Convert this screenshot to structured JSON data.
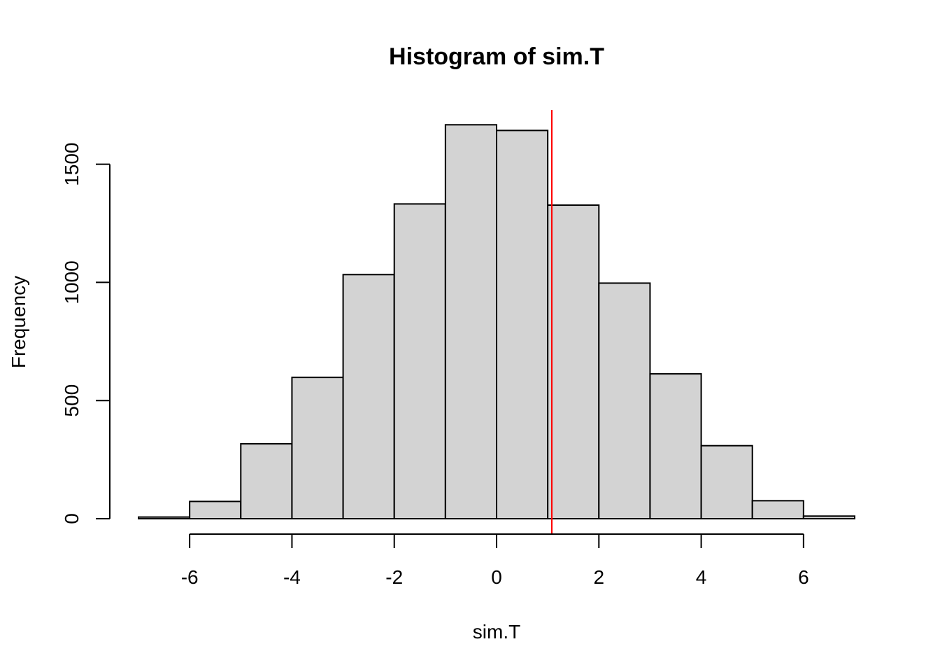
{
  "chart_data": {
    "type": "bar",
    "title": "Histogram of sim.T",
    "xlabel": "sim.T",
    "ylabel": "Frequency",
    "bins": [
      {
        "start": -7,
        "end": -6,
        "count": 7
      },
      {
        "start": -6,
        "end": -5,
        "count": 73
      },
      {
        "start": -5,
        "end": -4,
        "count": 317
      },
      {
        "start": -4,
        "end": -3,
        "count": 598
      },
      {
        "start": -3,
        "end": -2,
        "count": 1033
      },
      {
        "start": -2,
        "end": -1,
        "count": 1332
      },
      {
        "start": -1,
        "end": 0,
        "count": 1667
      },
      {
        "start": 0,
        "end": 1,
        "count": 1643
      },
      {
        "start": 1,
        "end": 2,
        "count": 1327
      },
      {
        "start": 2,
        "end": 3,
        "count": 997
      },
      {
        "start": 3,
        "end": 4,
        "count": 613
      },
      {
        "start": 4,
        "end": 5,
        "count": 309
      },
      {
        "start": 5,
        "end": 6,
        "count": 76
      },
      {
        "start": 6,
        "end": 7,
        "count": 11
      }
    ],
    "xlim": [
      -7,
      7
    ],
    "ylim": [
      0,
      1730
    ],
    "x_ticks": [
      -6,
      -4,
      -2,
      0,
      2,
      4,
      6
    ],
    "x_tick_labels": [
      "-6",
      "-4",
      "-2",
      "0",
      "2",
      "4",
      "6"
    ],
    "y_ticks": [
      0,
      500,
      1000,
      1500
    ],
    "y_tick_labels": [
      "0",
      "500",
      "1000",
      "1500"
    ],
    "reference_line": {
      "x": 1.08,
      "color": "#ff0000"
    },
    "bar_color": "#d3d3d3",
    "grid": false
  }
}
